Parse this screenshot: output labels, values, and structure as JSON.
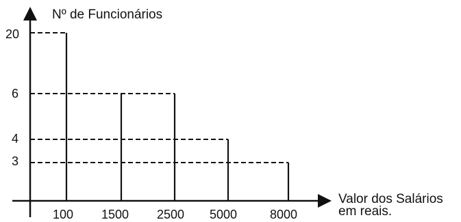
{
  "chart_data": {
    "type": "bar",
    "ylabel": "Nº de Funcionários",
    "xlabel_lines": [
      "Valor dos Salários",
      "em reais."
    ],
    "categories": [
      "100",
      "1500",
      "2500",
      "5000",
      "8000"
    ],
    "values": [
      20,
      6,
      6,
      4,
      3
    ],
    "y_ticks": [
      "20",
      "6",
      "4",
      "3"
    ],
    "y_scale": "non-linear (labels only)",
    "grid": false,
    "bar_style": "vertical solid lines with dashed leaders to the y-axis"
  }
}
